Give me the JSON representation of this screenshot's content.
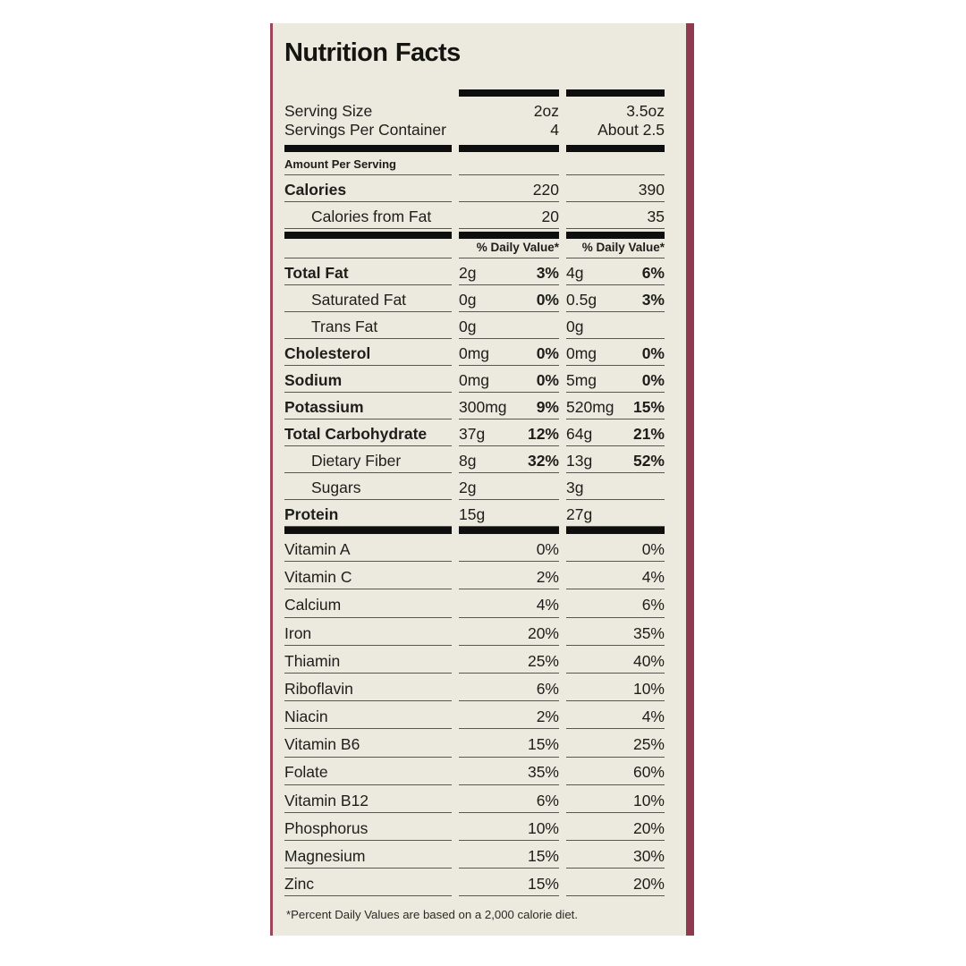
{
  "colors": {
    "page_bg": "#ffffff",
    "label_bg": "#eceadf",
    "text": "#1d1d1a",
    "line": "#58574d",
    "bar": "#0e0e0e",
    "edge_left": "#a04458",
    "edge_right": "#8e3a50"
  },
  "label": {
    "title": "Nutrition Facts",
    "amount_per_serving_label": "Amount Per Serving",
    "daily_value_header": "% Daily Value*",
    "footnote": "*Percent Daily Values are based on a 2,000 calorie diet.",
    "serving_rows": [
      {
        "name": "Serving Size",
        "v1": "2oz",
        "v2": "3.5oz"
      },
      {
        "name": "Servings Per Container",
        "v1": "4",
        "v2": "About 2.5"
      }
    ],
    "calorie_rows": [
      {
        "name": "Calories",
        "v1": "220",
        "v2": "390",
        "bold": true
      },
      {
        "name": "Calories from Fat",
        "v1": "20",
        "v2": "35",
        "indent": true
      }
    ],
    "nutrient_rows": [
      {
        "name": "Total Fat",
        "amt1": "2g",
        "dv1": "3%",
        "amt2": "4g",
        "dv2": "6%",
        "bold": true
      },
      {
        "name": "Saturated Fat",
        "amt1": "0g",
        "dv1": "0%",
        "amt2": "0.5g",
        "dv2": "3%",
        "indent": true
      },
      {
        "name": "Trans Fat",
        "amt1": "0g",
        "amt2": "0g",
        "indent": true
      },
      {
        "name": "Cholesterol",
        "amt1": "0mg",
        "dv1": "0%",
        "amt2": "0mg",
        "dv2": "0%",
        "bold": true
      },
      {
        "name": "Sodium",
        "amt1": "0mg",
        "dv1": "0%",
        "amt2": "5mg",
        "dv2": "0%",
        "bold": true
      },
      {
        "name": "Potassium",
        "amt1": "300mg",
        "dv1": "9%",
        "amt2": "520mg",
        "dv2": "15%",
        "bold": true
      },
      {
        "name": "Total Carbohydrate",
        "amt1": "37g",
        "dv1": "12%",
        "amt2": "64g",
        "dv2": "21%",
        "bold": true
      },
      {
        "name": "Dietary Fiber",
        "amt1": "8g",
        "dv1": "32%",
        "amt2": "13g",
        "dv2": "52%",
        "indent": true
      },
      {
        "name": "Sugars",
        "amt1": "2g",
        "amt2": "3g",
        "indent": true
      },
      {
        "name": "Protein",
        "amt1": "15g",
        "amt2": "27g",
        "bold": true
      }
    ],
    "vitamin_rows": [
      {
        "name": "Vitamin A",
        "dv1": "0%",
        "dv2": "0%"
      },
      {
        "name": "Vitamin C",
        "dv1": "2%",
        "dv2": "4%"
      },
      {
        "name": "Calcium",
        "dv1": "4%",
        "dv2": "6%"
      },
      {
        "name": "Iron",
        "dv1": "20%",
        "dv2": "35%"
      },
      {
        "name": "Thiamin",
        "dv1": "25%",
        "dv2": "40%"
      },
      {
        "name": "Riboflavin",
        "dv1": "6%",
        "dv2": "10%"
      },
      {
        "name": "Niacin",
        "dv1": "2%",
        "dv2": "4%"
      },
      {
        "name": "Vitamin B6",
        "dv1": "15%",
        "dv2": "25%"
      },
      {
        "name": "Folate",
        "dv1": "35%",
        "dv2": "60%"
      },
      {
        "name": "Vitamin B12",
        "dv1": "6%",
        "dv2": "10%"
      },
      {
        "name": "Phosphorus",
        "dv1": "10%",
        "dv2": "20%"
      },
      {
        "name": "Magnesium",
        "dv1": "15%",
        "dv2": "30%"
      },
      {
        "name": "Zinc",
        "dv1": "15%",
        "dv2": "20%"
      }
    ]
  }
}
